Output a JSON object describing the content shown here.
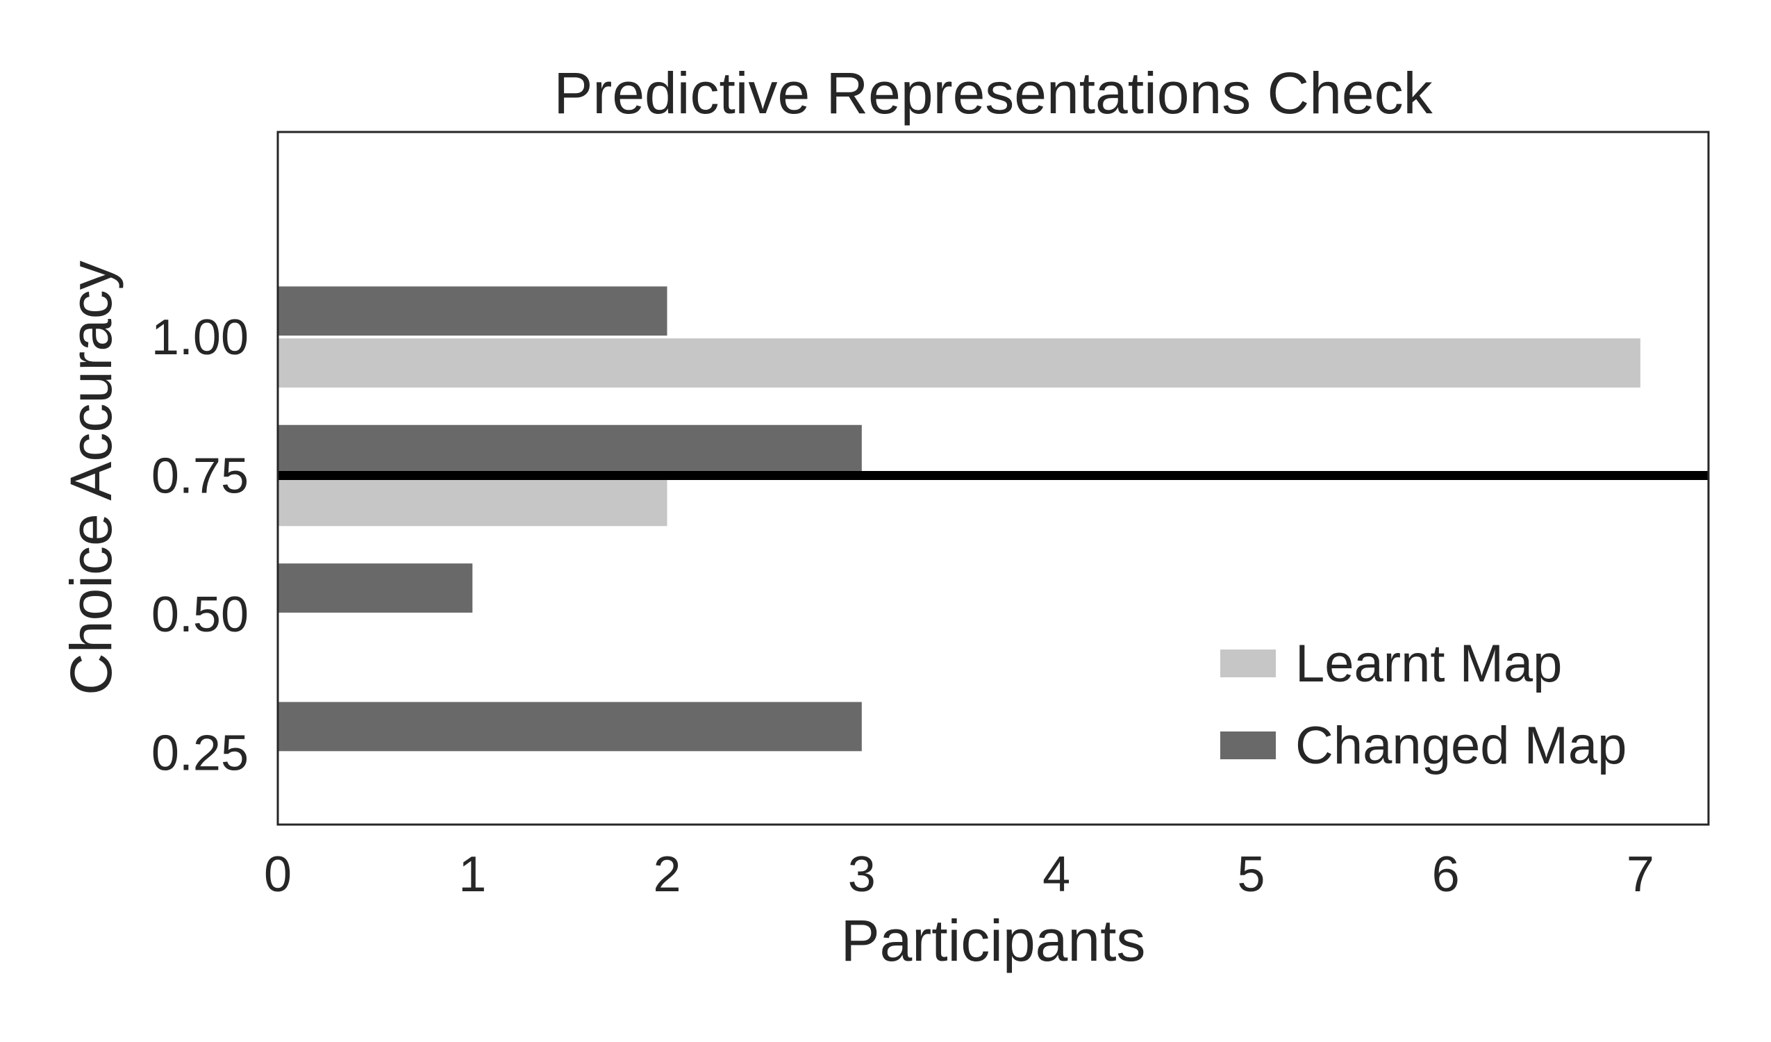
{
  "chart_data": {
    "type": "bar",
    "orientation": "horizontal",
    "title": "Predictive Representations Check",
    "xlabel": "Participants",
    "ylabel": "Choice Accuracy",
    "categories": [
      "0.25",
      "0.50",
      "0.75",
      "1.00"
    ],
    "x_ticks": [
      "0",
      "1",
      "2",
      "3",
      "4",
      "5",
      "6",
      "7"
    ],
    "xlim": [
      0,
      7.35
    ],
    "ylim": [
      0.12,
      1.37
    ],
    "series": [
      {
        "name": "Learnt Map",
        "color": "#c6c6c6",
        "values": [
          0,
          0,
          2,
          7
        ]
      },
      {
        "name": "Changed Map",
        "color": "#696969",
        "values": [
          3,
          1,
          3,
          2
        ]
      }
    ],
    "reference_line": {
      "y": 0.75,
      "color": "#000000"
    },
    "grid": false,
    "legend_position": "lower-right"
  }
}
